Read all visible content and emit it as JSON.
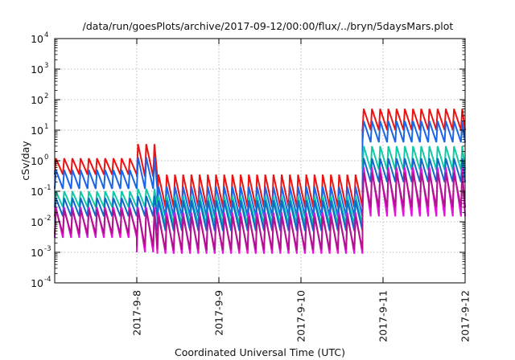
{
  "chart_data": {
    "type": "line",
    "title": "/data/run/goesPlots/archive/2017-09-12/00:00/flux/../bryn/5daysMars.plot",
    "xlabel": "Coordinated Universal Time (UTC)",
    "ylabel": "cSv/day",
    "xlim": [
      "2017-09-07 00:00",
      "2017-09-12 00:00"
    ],
    "ylim": [
      0.0001,
      10000
    ],
    "yscale": "log",
    "grid": true,
    "x_ticks": [
      "2017-9-8",
      "2017-9-9",
      "2017-9-10",
      "2017-9-11",
      "2017-9-12"
    ],
    "y_ticks": [
      {
        "base": "10",
        "exp": "-4",
        "value": 0.0001
      },
      {
        "base": "10",
        "exp": "-3",
        "value": 0.001
      },
      {
        "base": "10",
        "exp": "-2",
        "value": 0.01
      },
      {
        "base": "10",
        "exp": "-1",
        "value": 0.1
      },
      {
        "base": "10",
        "exp": "0",
        "value": 1
      },
      {
        "base": "10",
        "exp": "1",
        "value": 10
      },
      {
        "base": "10",
        "exp": "2",
        "value": 100
      },
      {
        "base": "10",
        "exp": "3",
        "value": 1000
      },
      {
        "base": "10",
        "exp": "4",
        "value": 10000
      }
    ],
    "oscillation_period_hours": 2.4,
    "series": [
      {
        "color": "#ee1111",
        "segments": [
          {
            "x": [
              "2017-09-07 00:00",
              "2017-09-08 00:00"
            ],
            "peak": 1.2,
            "trough": 0.35
          },
          {
            "x": [
              "2017-09-08 00:00",
              "2017-09-08 06:00"
            ],
            "peak": 3.5,
            "trough": 0.3
          },
          {
            "x": [
              "2017-09-08 06:00",
              "2017-09-10 18:00"
            ],
            "peak": 0.35,
            "trough": 0.03
          },
          {
            "x": [
              "2017-09-10 18:00",
              "2017-09-12 00:00"
            ],
            "peak": 50,
            "trough": 10
          }
        ]
      },
      {
        "color": "#1a66e6",
        "segments": [
          {
            "x": [
              "2017-09-07 00:00",
              "2017-09-08 00:00"
            ],
            "peak": 0.5,
            "trough": 0.12
          },
          {
            "x": [
              "2017-09-08 00:00",
              "2017-09-08 06:00"
            ],
            "peak": 1.3,
            "trough": 0.12
          },
          {
            "x": [
              "2017-09-08 06:00",
              "2017-09-10 18:00"
            ],
            "peak": 0.14,
            "trough": 0.015
          },
          {
            "x": [
              "2017-09-10 18:00",
              "2017-09-12 00:00"
            ],
            "peak": 20,
            "trough": 4
          }
        ]
      },
      {
        "color": "#11c9a6",
        "segments": [
          {
            "x": [
              "2017-09-07 00:00",
              "2017-09-08 00:00"
            ],
            "peak": 0.1,
            "trough": 0.03
          },
          {
            "x": [
              "2017-09-08 00:00",
              "2017-09-08 06:00"
            ],
            "peak": 0.12,
            "trough": 0.03
          },
          {
            "x": [
              "2017-09-08 06:00",
              "2017-09-10 18:00"
            ],
            "peak": 0.07,
            "trough": 0.008
          },
          {
            "x": [
              "2017-09-10 18:00",
              "2017-09-12 00:00"
            ],
            "peak": 3,
            "trough": 0.5
          }
        ]
      },
      {
        "color": "#1166c9",
        "segments": [
          {
            "x": [
              "2017-09-07 00:00",
              "2017-09-08 00:00"
            ],
            "peak": 0.06,
            "trough": 0.015
          },
          {
            "x": [
              "2017-09-08 00:00",
              "2017-09-08 06:00"
            ],
            "peak": 0.07,
            "trough": 0.015
          },
          {
            "x": [
              "2017-09-08 06:00",
              "2017-09-10 18:00"
            ],
            "peak": 0.05,
            "trough": 0.005
          },
          {
            "x": [
              "2017-09-10 18:00",
              "2017-09-12 00:00"
            ],
            "peak": 1.2,
            "trough": 0.2
          }
        ]
      },
      {
        "color": "#e311d9",
        "segments": [
          {
            "x": [
              "2017-09-07 00:00",
              "2017-09-08 00:00"
            ],
            "peak": 0.03,
            "trough": 0.003
          },
          {
            "x": [
              "2017-09-08 00:00",
              "2017-09-08 06:00"
            ],
            "peak": 0.03,
            "trough": 0.001
          },
          {
            "x": [
              "2017-09-08 06:00",
              "2017-09-10 18:00"
            ],
            "peak": 0.02,
            "trough": 0.0009
          },
          {
            "x": [
              "2017-09-10 18:00",
              "2017-09-12 00:00"
            ],
            "peak": 0.6,
            "trough": 0.015
          }
        ]
      },
      {
        "color": "#b0148c",
        "segments": [
          {
            "x": [
              "2017-09-07 00:00",
              "2017-09-08 00:00"
            ],
            "peak": 0.025,
            "trough": 0.004
          },
          {
            "x": [
              "2017-09-08 00:00",
              "2017-09-08 06:00"
            ],
            "peak": 0.025,
            "trough": 0.0015
          },
          {
            "x": [
              "2017-09-08 06:00",
              "2017-09-10 18:00"
            ],
            "peak": 0.015,
            "trough": 0.0012
          },
          {
            "x": [
              "2017-09-10 18:00",
              "2017-09-12 00:00"
            ],
            "peak": 0.4,
            "trough": 0.03
          }
        ]
      }
    ]
  }
}
